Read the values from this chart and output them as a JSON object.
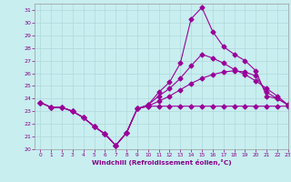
{
  "xlabel": "Windchill (Refroidissement éolien,°C)",
  "xlim": [
    -0.5,
    23
  ],
  "ylim": [
    20,
    31.5
  ],
  "yticks": [
    20,
    21,
    22,
    23,
    24,
    25,
    26,
    27,
    28,
    29,
    30,
    31
  ],
  "xticks": [
    0,
    1,
    2,
    3,
    4,
    5,
    6,
    7,
    8,
    9,
    10,
    11,
    12,
    13,
    14,
    15,
    16,
    17,
    18,
    19,
    20,
    21,
    22,
    23
  ],
  "background_color": "#c8eef0",
  "grid_color": "#b0d8da",
  "line_color": "#990099",
  "hours": [
    0,
    1,
    2,
    3,
    4,
    5,
    6,
    7,
    8,
    9,
    10,
    11,
    12,
    13,
    14,
    15,
    16,
    17,
    18,
    19,
    20,
    21,
    22,
    23
  ],
  "line_zigzag": [
    23.7,
    23.3,
    23.3,
    23.0,
    22.5,
    21.8,
    21.2,
    20.3,
    21.3,
    23.2,
    23.4,
    23.4,
    23.4,
    23.4,
    23.4,
    23.4,
    23.4,
    23.4,
    23.4,
    23.4,
    23.4,
    23.4,
    23.4,
    23.4
  ],
  "line_peak": [
    23.7,
    23.3,
    23.3,
    23.0,
    22.5,
    21.8,
    21.2,
    20.3,
    21.3,
    23.2,
    23.5,
    24.5,
    25.3,
    26.8,
    30.3,
    31.2,
    29.3,
    28.1,
    27.5,
    27.0,
    26.2,
    24.2,
    24.0,
    23.5
  ],
  "line_mid_peak": [
    23.7,
    23.3,
    23.3,
    23.0,
    22.5,
    21.8,
    21.2,
    20.3,
    21.3,
    23.2,
    23.5,
    24.2,
    24.8,
    25.6,
    26.6,
    27.5,
    27.2,
    26.8,
    26.3,
    25.9,
    25.4,
    24.8,
    24.2,
    23.5
  ],
  "line_low": [
    23.7,
    23.3,
    23.3,
    23.0,
    22.5,
    21.8,
    21.2,
    20.3,
    21.3,
    23.2,
    23.4,
    23.8,
    24.2,
    24.7,
    25.2,
    25.6,
    25.9,
    26.1,
    26.2,
    26.1,
    25.8,
    24.5,
    24.0,
    23.5
  ]
}
